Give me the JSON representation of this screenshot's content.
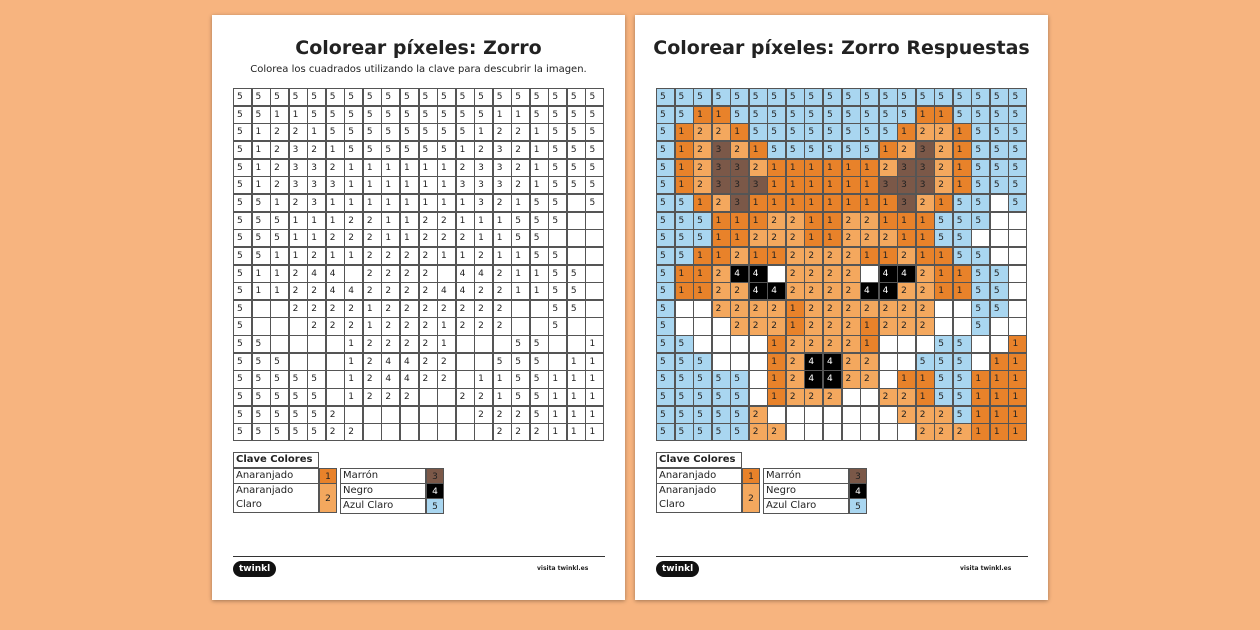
{
  "sheets": [
    {
      "title": "Colorear píxeles: Zorro",
      "subtitle": "Colorea los cuadrados utilizando la clave para descubrir la imagen."
    },
    {
      "title": "Colorear píxeles: Zorro Respuestas"
    }
  ],
  "grid": [
    [
      5,
      5,
      5,
      5,
      5,
      5,
      5,
      5,
      5,
      5,
      5,
      5,
      5,
      5,
      5,
      5,
      5,
      5,
      5,
      5
    ],
    [
      5,
      5,
      1,
      1,
      5,
      5,
      5,
      5,
      5,
      5,
      5,
      5,
      5,
      5,
      1,
      1,
      5,
      5,
      5,
      5
    ],
    [
      5,
      1,
      2,
      2,
      1,
      5,
      5,
      5,
      5,
      5,
      5,
      5,
      5,
      1,
      2,
      2,
      1,
      5,
      5,
      5
    ],
    [
      5,
      1,
      2,
      3,
      2,
      1,
      5,
      5,
      5,
      5,
      5,
      5,
      1,
      2,
      3,
      2,
      1,
      5,
      5,
      5
    ],
    [
      5,
      1,
      2,
      3,
      3,
      2,
      1,
      1,
      1,
      1,
      1,
      1,
      2,
      3,
      3,
      2,
      1,
      5,
      5,
      5
    ],
    [
      5,
      1,
      2,
      3,
      3,
      3,
      1,
      1,
      1,
      1,
      1,
      1,
      3,
      3,
      3,
      2,
      1,
      5,
      5,
      5
    ],
    [
      5,
      5,
      1,
      2,
      3,
      1,
      1,
      1,
      1,
      1,
      1,
      1,
      1,
      3,
      2,
      1,
      5,
      5,
      null,
      5
    ],
    [
      5,
      5,
      5,
      1,
      1,
      1,
      2,
      2,
      1,
      1,
      2,
      2,
      1,
      1,
      1,
      5,
      5,
      5,
      null,
      null
    ],
    [
      5,
      5,
      5,
      1,
      1,
      2,
      2,
      2,
      1,
      1,
      2,
      2,
      2,
      1,
      1,
      5,
      5,
      null,
      null,
      null
    ],
    [
      5,
      5,
      1,
      1,
      2,
      1,
      1,
      2,
      2,
      2,
      2,
      1,
      1,
      2,
      1,
      1,
      5,
      5,
      null,
      null
    ],
    [
      5,
      1,
      1,
      2,
      4,
      4,
      null,
      2,
      2,
      2,
      2,
      null,
      4,
      4,
      2,
      1,
      1,
      5,
      5,
      null
    ],
    [
      5,
      1,
      1,
      2,
      2,
      4,
      4,
      2,
      2,
      2,
      2,
      4,
      4,
      2,
      2,
      1,
      1,
      5,
      5,
      null
    ],
    [
      5,
      null,
      null,
      2,
      2,
      2,
      2,
      1,
      2,
      2,
      2,
      2,
      2,
      2,
      2,
      null,
      null,
      5,
      5,
      null
    ],
    [
      5,
      null,
      null,
      null,
      2,
      2,
      2,
      1,
      2,
      2,
      2,
      1,
      2,
      2,
      2,
      null,
      null,
      5,
      null,
      null
    ],
    [
      5,
      5,
      null,
      null,
      null,
      null,
      1,
      2,
      2,
      2,
      2,
      1,
      null,
      null,
      null,
      5,
      5,
      null,
      null,
      1
    ],
    [
      5,
      5,
      5,
      null,
      null,
      null,
      1,
      2,
      4,
      4,
      2,
      2,
      null,
      null,
      5,
      5,
      5,
      null,
      1,
      1
    ],
    [
      5,
      5,
      5,
      5,
      5,
      null,
      1,
      2,
      4,
      4,
      2,
      2,
      null,
      1,
      1,
      5,
      5,
      1,
      1,
      1
    ],
    [
      5,
      5,
      5,
      5,
      5,
      null,
      1,
      2,
      2,
      2,
      null,
      null,
      2,
      2,
      1,
      5,
      5,
      1,
      1,
      1
    ],
    [
      5,
      5,
      5,
      5,
      5,
      2,
      null,
      null,
      null,
      null,
      null,
      null,
      null,
      2,
      2,
      2,
      5,
      1,
      1,
      1
    ],
    [
      5,
      5,
      5,
      5,
      5,
      2,
      2,
      null,
      null,
      null,
      null,
      null,
      null,
      null,
      2,
      2,
      2,
      1,
      1,
      1
    ]
  ],
  "key": {
    "title": "Clave Colores",
    "items": [
      {
        "label": "Anaranjado",
        "code": 1,
        "color": "#e8822a"
      },
      {
        "label": "Anaranjado Claro",
        "code": 2,
        "color": "#f4a85e"
      },
      {
        "label": "Marrón",
        "code": 3,
        "color": "#7b5848"
      },
      {
        "label": "Negro",
        "code": 4,
        "color": "#000000"
      },
      {
        "label": "Azul Claro",
        "code": 5,
        "color": "#a9d6f0"
      }
    ]
  },
  "footer": {
    "logo": "twinkl",
    "link": "visita twinkl.es"
  }
}
